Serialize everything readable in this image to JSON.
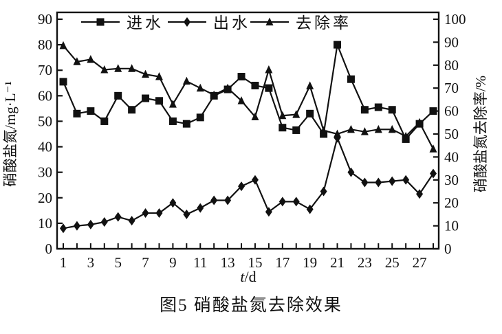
{
  "figure": {
    "caption": "图5 硝酸盐氮去除效果",
    "xlabel_italic": "t",
    "xlabel_rest": "/d"
  },
  "chart_data": {
    "type": "line",
    "title": "",
    "xlabel": "t/d",
    "x_tick_labels": [
      "1",
      "3",
      "5",
      "7",
      "9",
      "11",
      "13",
      "15",
      "17",
      "19",
      "21",
      "23",
      "25",
      "27"
    ],
    "n_points": 28,
    "x_days_span": [
      1,
      27
    ],
    "left_axis": {
      "label": "硝酸盐氮/mg·L⁻¹",
      "min": 0,
      "max": 90,
      "step": 10
    },
    "right_axis": {
      "label": "硝酸盐氮去除率/%",
      "min": 0,
      "max": 100,
      "step": 10
    },
    "grid": false,
    "legend_position": "top-inside",
    "ink_color": "#111111",
    "series": [
      {
        "key": "influent",
        "name": "进水",
        "marker": "square",
        "axis": "left",
        "values": [
          65.5,
          53,
          54,
          50,
          60,
          54.5,
          59,
          58,
          50,
          49,
          51.5,
          60,
          62.5,
          67.5,
          64,
          63,
          47.5,
          46.5,
          53,
          45,
          80,
          66.5,
          54.5,
          55.5,
          54.5,
          43,
          49,
          54
        ]
      },
      {
        "key": "effluent",
        "name": "出水",
        "marker": "diamond",
        "axis": "left",
        "values": [
          8,
          9,
          9.5,
          10.5,
          12.5,
          11,
          14,
          14,
          18,
          13.5,
          16,
          19,
          19,
          24.5,
          27,
          14.5,
          18.5,
          18.5,
          15.5,
          22.5,
          43.5,
          30,
          26,
          26,
          26.5,
          27,
          21.5,
          29.5
        ]
      },
      {
        "key": "removal-rate",
        "name": "去除率",
        "marker": "triangle",
        "axis": "right",
        "values": [
          88.5,
          81.5,
          82.5,
          78,
          78.5,
          78.5,
          76,
          75,
          63,
          73,
          70,
          67,
          70,
          64.5,
          57.5,
          78,
          58,
          58.5,
          71,
          51.5,
          50,
          52,
          51,
          52,
          52,
          49,
          55,
          43.5
        ]
      }
    ]
  }
}
